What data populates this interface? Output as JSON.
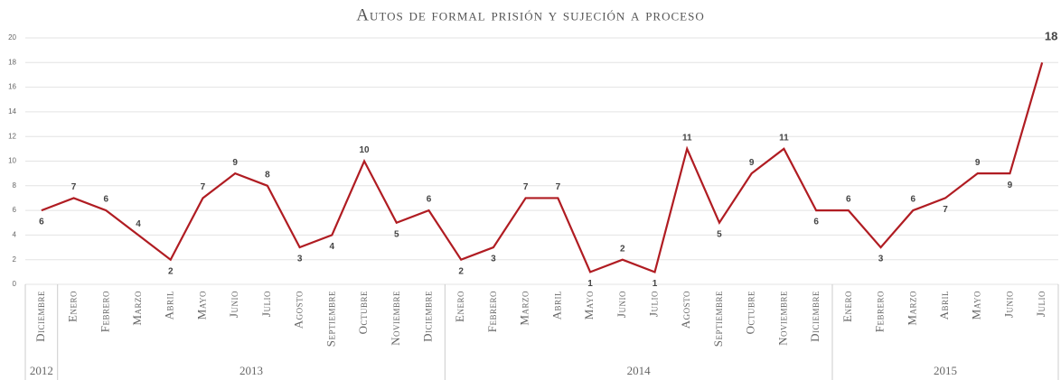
{
  "chart_data": {
    "type": "line",
    "title": "Autos de formal prisión y sujeción a proceso",
    "categories": [
      "Diciembre",
      "Enero",
      "Febrero",
      "Marzo",
      "Abril",
      "Mayo",
      "Junio",
      "Julio",
      "Agosto",
      "Septiembre",
      "Octubre",
      "Noviembre",
      "Diciembre",
      "Enero",
      "Febrero",
      "Marzo",
      "Abril",
      "Mayo",
      "Junio",
      "Julio",
      "Agosto",
      "Septiembre",
      "Octubre",
      "Noviembre",
      "Diciembre",
      "Enero",
      "Febrero",
      "Marzo",
      "Abril",
      "Mayo",
      "Junio",
      "Julio"
    ],
    "category_groups": [
      {
        "label": "2012",
        "count": 1
      },
      {
        "label": "2013",
        "count": 12
      },
      {
        "label": "2014",
        "count": 12
      },
      {
        "label": "2015",
        "count": 7
      }
    ],
    "series": [
      {
        "name": "Autos",
        "color": "#b01c22",
        "values": [
          6,
          7,
          6,
          4,
          2,
          7,
          9,
          8,
          3,
          4,
          10,
          5,
          6,
          2,
          3,
          7,
          7,
          1,
          2,
          1,
          11,
          5,
          9,
          11,
          6,
          6,
          3,
          6,
          7,
          9,
          9,
          18
        ]
      }
    ],
    "ylim": [
      0,
      20
    ],
    "yticks": [
      0,
      2,
      4,
      6,
      8,
      10,
      12,
      14,
      16,
      18,
      20
    ],
    "grid": true
  }
}
